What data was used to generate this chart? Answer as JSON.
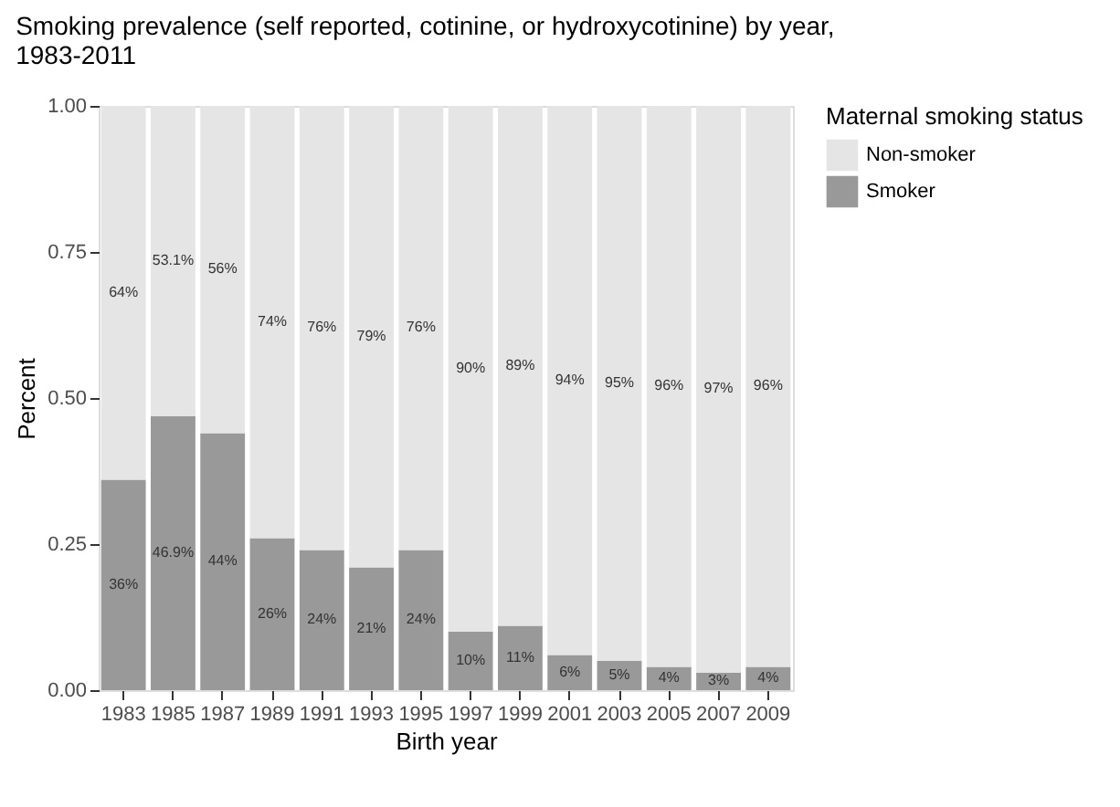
{
  "chart_data": {
    "type": "bar",
    "stacked": true,
    "title": "Smoking prevalence (self reported, cotinine, or hydroxycotinine) by year, 1983-2011",
    "xlabel": "Birth year",
    "ylabel": "Percent",
    "legend_title": "Maternal smoking status",
    "legend": "right",
    "grid": false,
    "categories": [
      "1983",
      "1985",
      "1987",
      "1989",
      "1991",
      "1993",
      "1995",
      "1997",
      "1999",
      "2001",
      "2003",
      "2005",
      "2007",
      "2009"
    ],
    "ylim": [
      0,
      1
    ],
    "yticks": [
      {
        "value": 0,
        "label": "0.00"
      },
      {
        "value": 0.25,
        "label": "0.25"
      },
      {
        "value": 0.5,
        "label": "0.50"
      },
      {
        "value": 0.75,
        "label": "0.75"
      },
      {
        "value": 1,
        "label": "1.00"
      }
    ],
    "series": [
      {
        "name": "Smoker",
        "color": "#999999",
        "values": [
          0.36,
          0.469,
          0.44,
          0.26,
          0.24,
          0.21,
          0.24,
          0.1,
          0.11,
          0.06,
          0.05,
          0.04,
          0.03,
          0.04
        ],
        "value_labels": [
          "36%",
          "46.9%",
          "44%",
          "26%",
          "24%",
          "21%",
          "24%",
          "10%",
          "11%",
          "6%",
          "5%",
          "4%",
          "3%",
          "4%"
        ]
      },
      {
        "name": "Non-smoker",
        "color": "#e5e5e5",
        "values": [
          0.64,
          0.531,
          0.56,
          0.74,
          0.76,
          0.79,
          0.76,
          0.9,
          0.89,
          0.94,
          0.95,
          0.96,
          0.97,
          0.96
        ],
        "value_labels": [
          "64%",
          "53.1%",
          "56%",
          "74%",
          "76%",
          "79%",
          "76%",
          "90%",
          "89%",
          "94%",
          "95%",
          "96%",
          "97%",
          "96%"
        ]
      }
    ]
  }
}
